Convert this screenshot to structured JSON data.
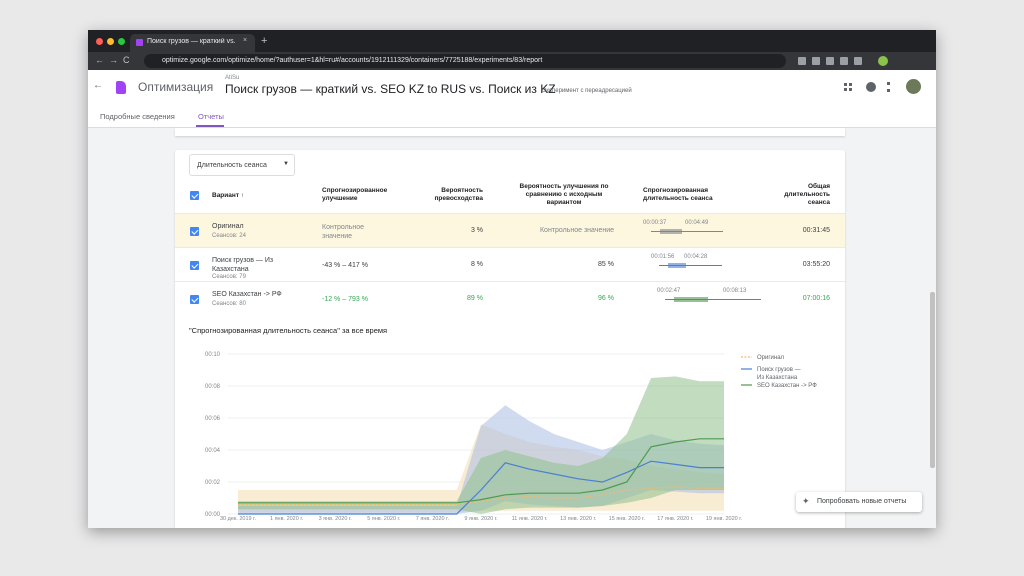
{
  "browser": {
    "tab_title": "Поиск грузов — краткий vs. SE",
    "url": "optimize.google.com/optimize/home/?authuser=1&hl=ru#/accounts/1912111329/containers/7725188/experiments/83/report"
  },
  "header": {
    "app_name": "Оптимизация",
    "account": "AtiSu",
    "title": "Поиск грузов — краткий vs. SEO KZ to RUS vs. Поиск из KZ",
    "subtitle": "Эксперимент с переадресацией"
  },
  "tabs": [
    "Подробные сведения",
    "Отчеты"
  ],
  "metric_selector": "Длительность сеанса",
  "table": {
    "columns": [
      "Вариант ↑",
      "Спрогнозированное улучшение",
      "Вероятность превосходства",
      "Вероятность улучшения по сравнению с исходным вариантом",
      "Спрогнозированная длительность сеанса",
      "Общая длительность сеанса"
    ],
    "rows": [
      {
        "name": "Оригинал",
        "sessions": "Сеансов: 24",
        "improvement": "Контрольное значение",
        "probability_best": "3 %",
        "probability_improvement": "Контрольное значение",
        "interval_low": "00:00:37",
        "interval_high": "00:04:49",
        "total": "00:31:45"
      },
      {
        "name": "Поиск грузов — Из Казахстана",
        "sessions": "Сеансов: 79",
        "improvement": "-43 % – 417 %",
        "probability_best": "8 %",
        "probability_improvement": "85 %",
        "interval_low": "00:01:56",
        "interval_high": "00:04:28",
        "total": "03:55:20"
      },
      {
        "name": "SEO Казахстан -> РФ",
        "sessions": "Сеансов: 80",
        "improvement": "-12 % – 793 %",
        "probability_best": "89 %",
        "probability_improvement": "96 %",
        "interval_low": "00:02:47",
        "interval_high": "00:08:13",
        "total": "07:00:16"
      }
    ]
  },
  "chart": {
    "type": "line",
    "title": "\"Спрогнозированная длительность сеанса\" за все время",
    "categories": [
      "30 дек. 2019 г.",
      null,
      "1 янв. 2020 г.",
      null,
      "3 янв. 2020 г.",
      null,
      "5 янв. 2020 г.",
      null,
      "7 янв. 2020 г.",
      null,
      "9 янв. 2020 г.",
      null,
      "11 янв. 2020 г.",
      null,
      "13 янв. 2020 г.",
      null,
      "15 янв. 2020 г.",
      null,
      "17 янв. 2020 г.",
      null,
      "19 янв. 2020 г."
    ],
    "ylim": [
      0,
      10
    ],
    "yticks": [
      {
        "value": 0,
        "label": "00:00"
      },
      {
        "value": 2,
        "label": "00:02"
      },
      {
        "value": 4,
        "label": "00:04"
      },
      {
        "value": 6,
        "label": "00:06"
      },
      {
        "value": 8,
        "label": "00:08"
      },
      {
        "value": 10,
        "label": "00:10"
      }
    ],
    "series": [
      {
        "name": "Оригинал",
        "color": "#f5b968",
        "band_color": "#f3dcae",
        "dashed": true,
        "values": [
          0.6,
          0.6,
          0.6,
          0.6,
          0.6,
          0.6,
          0.6,
          0.6,
          0.6,
          0.6,
          0.8,
          1.0,
          1.1,
          1.0,
          1.0,
          1.2,
          1.5,
          1.6,
          1.7,
          1.6,
          1.6
        ],
        "lower": [
          0.1,
          0.1,
          0.1,
          0.1,
          0.1,
          0.1,
          0.1,
          0.1,
          0.1,
          0.1,
          0.2,
          0.2,
          0.2,
          0.2,
          0.2,
          0.2,
          0.2,
          0.2,
          0.2,
          0.2,
          0.2
        ],
        "upper": [
          1.5,
          1.5,
          1.5,
          1.5,
          1.5,
          1.5,
          1.5,
          1.5,
          1.5,
          1.5,
          5.6,
          5.0,
          4.5,
          4.2,
          4.0,
          3.6,
          3.4,
          3.0,
          2.8,
          2.6,
          2.5
        ]
      },
      {
        "name": "Поиск грузов — Из Казахстана",
        "color": "#4a7fd4",
        "band_color": "#a9bde3",
        "dashed": false,
        "values": [
          0,
          0,
          0,
          0,
          0,
          0,
          0,
          0,
          0,
          0,
          1.5,
          3.2,
          2.8,
          2.5,
          2.2,
          2.0,
          2.6,
          3.3,
          3.1,
          2.9,
          2.9
        ],
        "lower": [
          0,
          0,
          0,
          0,
          0,
          0,
          0,
          0,
          0,
          0,
          0.2,
          0.8,
          0.6,
          0.5,
          0.4,
          0.5,
          1.0,
          1.5,
          1.4,
          1.3,
          1.3
        ],
        "upper": [
          0.5,
          0.5,
          0.5,
          0.5,
          0.5,
          0.5,
          0.5,
          0.5,
          0.5,
          0.5,
          5.5,
          6.8,
          5.8,
          5.0,
          4.5,
          4.0,
          4.5,
          5.0,
          4.6,
          4.4,
          4.3
        ]
      },
      {
        "name": "SEO Казахстан -> РФ",
        "color": "#4f9a4f",
        "band_color": "#8fbf8c",
        "dashed": false,
        "values": [
          0.7,
          0.7,
          0.7,
          0.7,
          0.7,
          0.7,
          0.7,
          0.7,
          0.7,
          0.7,
          0.9,
          1.2,
          1.3,
          1.3,
          1.3,
          1.5,
          2.0,
          4.2,
          4.5,
          4.7,
          4.7
        ],
        "lower": [
          0.3,
          0.3,
          0.3,
          0.3,
          0.3,
          0.3,
          0.3,
          0.3,
          0.3,
          0.3,
          0,
          0.3,
          0.4,
          0.4,
          0.4,
          0.5,
          0.7,
          1.0,
          1.5,
          1.5,
          1.5
        ],
        "upper": [
          0.8,
          0.8,
          0.8,
          0.8,
          0.8,
          0.8,
          0.8,
          0.8,
          0.8,
          0.8,
          3.5,
          4.0,
          3.6,
          3.2,
          3.0,
          3.5,
          5.0,
          8.5,
          8.6,
          8.3,
          8.3
        ]
      }
    ]
  },
  "button": "Попробовать новые отчеты"
}
